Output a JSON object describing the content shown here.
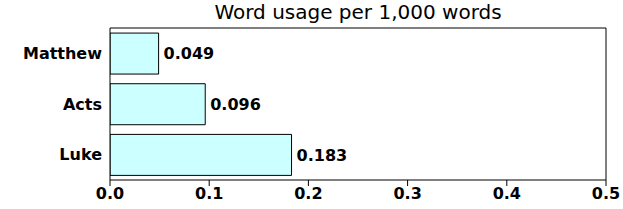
{
  "chart_data": {
    "type": "bar",
    "title": "Word usage per 1,000 words",
    "orientation": "horizontal",
    "categories": [
      "Matthew",
      "Acts",
      "Luke"
    ],
    "values": [
      0.049,
      0.096,
      0.183
    ],
    "color": "#ccffff",
    "xlim": [
      0,
      0.5
    ],
    "xticks": [
      {
        "value": 0,
        "label": "0.0"
      },
      0.1,
      0.2,
      0.3,
      0.4,
      0.5
    ],
    "grid": false,
    "data_labels": true
  }
}
